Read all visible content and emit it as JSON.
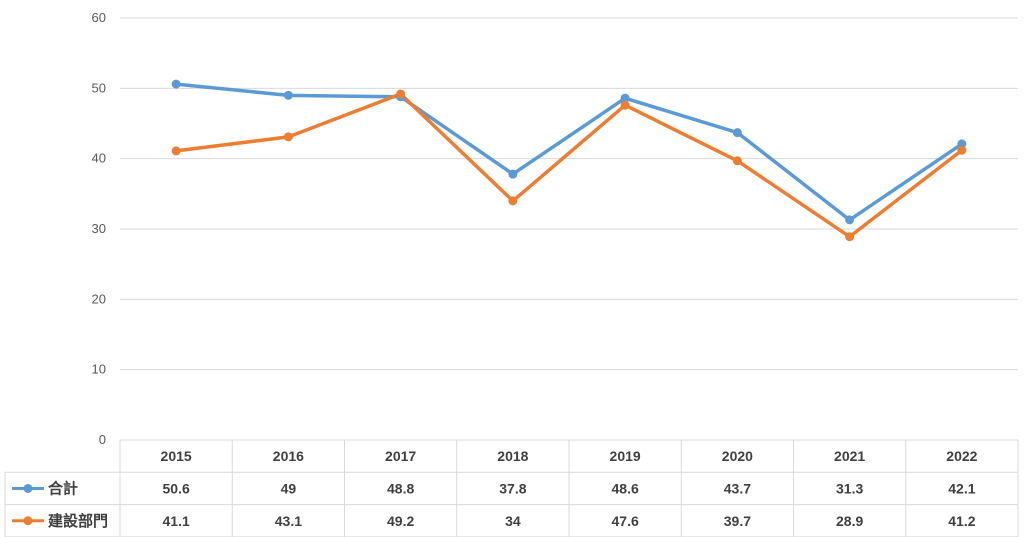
{
  "chart_data": {
    "type": "line",
    "categories": [
      "2015",
      "2016",
      "2017",
      "2018",
      "2019",
      "2020",
      "2021",
      "2022"
    ],
    "series": [
      {
        "name": "合計",
        "values": [
          50.6,
          49,
          48.8,
          37.8,
          48.6,
          43.7,
          31.3,
          42.1
        ],
        "color": "#5B9BD5",
        "labels": [
          "50.6",
          "49",
          "48.8",
          "37.8",
          "48.6",
          "43.7",
          "31.3",
          "42.1"
        ]
      },
      {
        "name": "建設部門",
        "values": [
          41.1,
          43.1,
          49.2,
          34,
          47.6,
          39.7,
          28.9,
          41.2
        ],
        "color": "#ED7D31",
        "labels": [
          "41.1",
          "43.1",
          "49.2",
          "34",
          "47.6",
          "39.7",
          "28.9",
          "41.2"
        ]
      }
    ],
    "ylim": [
      0,
      60
    ],
    "yticks": [
      "0",
      "10",
      "20",
      "30",
      "40",
      "50",
      "60"
    ],
    "grid": true,
    "legend": "data-table",
    "gridColor": "#D9D9D9"
  }
}
